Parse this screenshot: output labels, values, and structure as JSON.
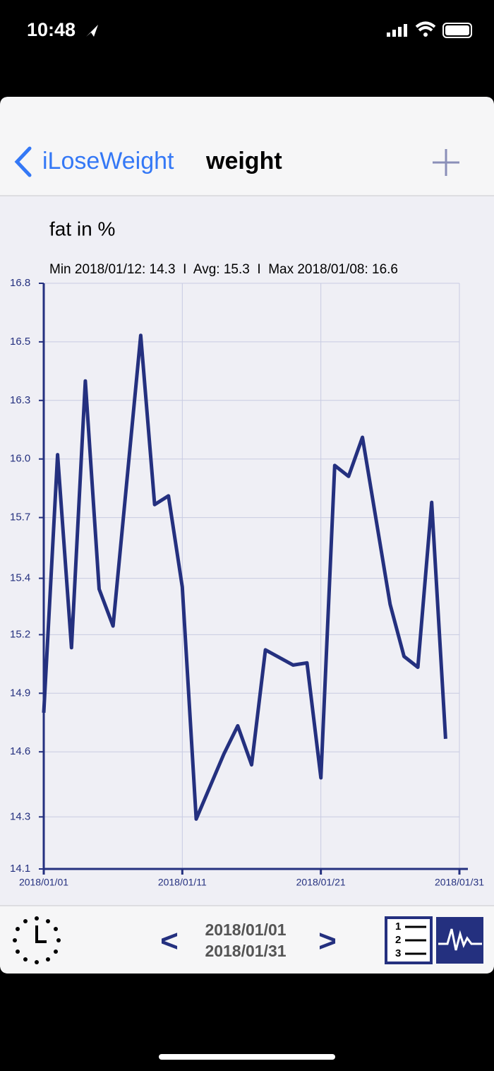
{
  "status_bar": {
    "time": "10:48"
  },
  "nav": {
    "back": "iLoseWeight",
    "title": "weight"
  },
  "chart_data": {
    "type": "line",
    "title": "fat in %",
    "subtitle": "Min 2018/01/12: 14.3  I  Avg: 15.3  I  Max 2018/01/08: 16.6",
    "x": [
      "2018/01/01",
      "2018/01/02",
      "2018/01/03",
      "2018/01/04",
      "2018/01/05",
      "2018/01/06",
      "2018/01/08",
      "2018/01/09",
      "2018/01/10",
      "2018/01/11",
      "2018/01/12",
      "2018/01/14",
      "2018/01/15",
      "2018/01/16",
      "2018/01/17",
      "2018/01/19",
      "2018/01/20",
      "2018/01/21",
      "2018/01/22",
      "2018/01/23",
      "2018/01/24",
      "2018/01/26",
      "2018/01/27",
      "2018/01/28",
      "2018/01/29",
      "2018/01/30"
    ],
    "series": [
      {
        "name": "fat in %",
        "color": "#24307f",
        "values": [
          14.82,
          16.01,
          15.12,
          16.35,
          15.39,
          15.22,
          16.56,
          15.78,
          15.82,
          15.4,
          14.33,
          14.63,
          14.76,
          14.58,
          15.11,
          15.04,
          15.05,
          14.52,
          15.96,
          15.91,
          16.09,
          15.32,
          15.08,
          15.03,
          15.79,
          14.7
        ]
      }
    ],
    "xlim": [
      "2018/01/01",
      "2018/01/31"
    ],
    "xticks": [
      "2018/01/01",
      "2018/01/11",
      "2018/01/21",
      "2018/01/31"
    ],
    "ylim": [
      14.1,
      16.8
    ],
    "yticks": [
      14.1,
      {
        "value": 14.34,
        "label": "14.3"
      },
      {
        "value": 14.64,
        "label": "14.6"
      },
      {
        "value": 14.91,
        "label": "14.9"
      },
      {
        "value": 15.18,
        "label": "15.2"
      },
      {
        "value": 15.44,
        "label": "15.4"
      },
      {
        "value": 15.72,
        "label": "15.7"
      },
      {
        "value": 15.99,
        "label": "16.0"
      },
      {
        "value": 16.26,
        "label": "16.3"
      },
      {
        "value": 16.53,
        "label": "16.5"
      },
      16.8
    ],
    "grid": true
  },
  "footer": {
    "prev": "<",
    "from": "2018/01/01",
    "to": "2018/01/31",
    "next": ">"
  }
}
